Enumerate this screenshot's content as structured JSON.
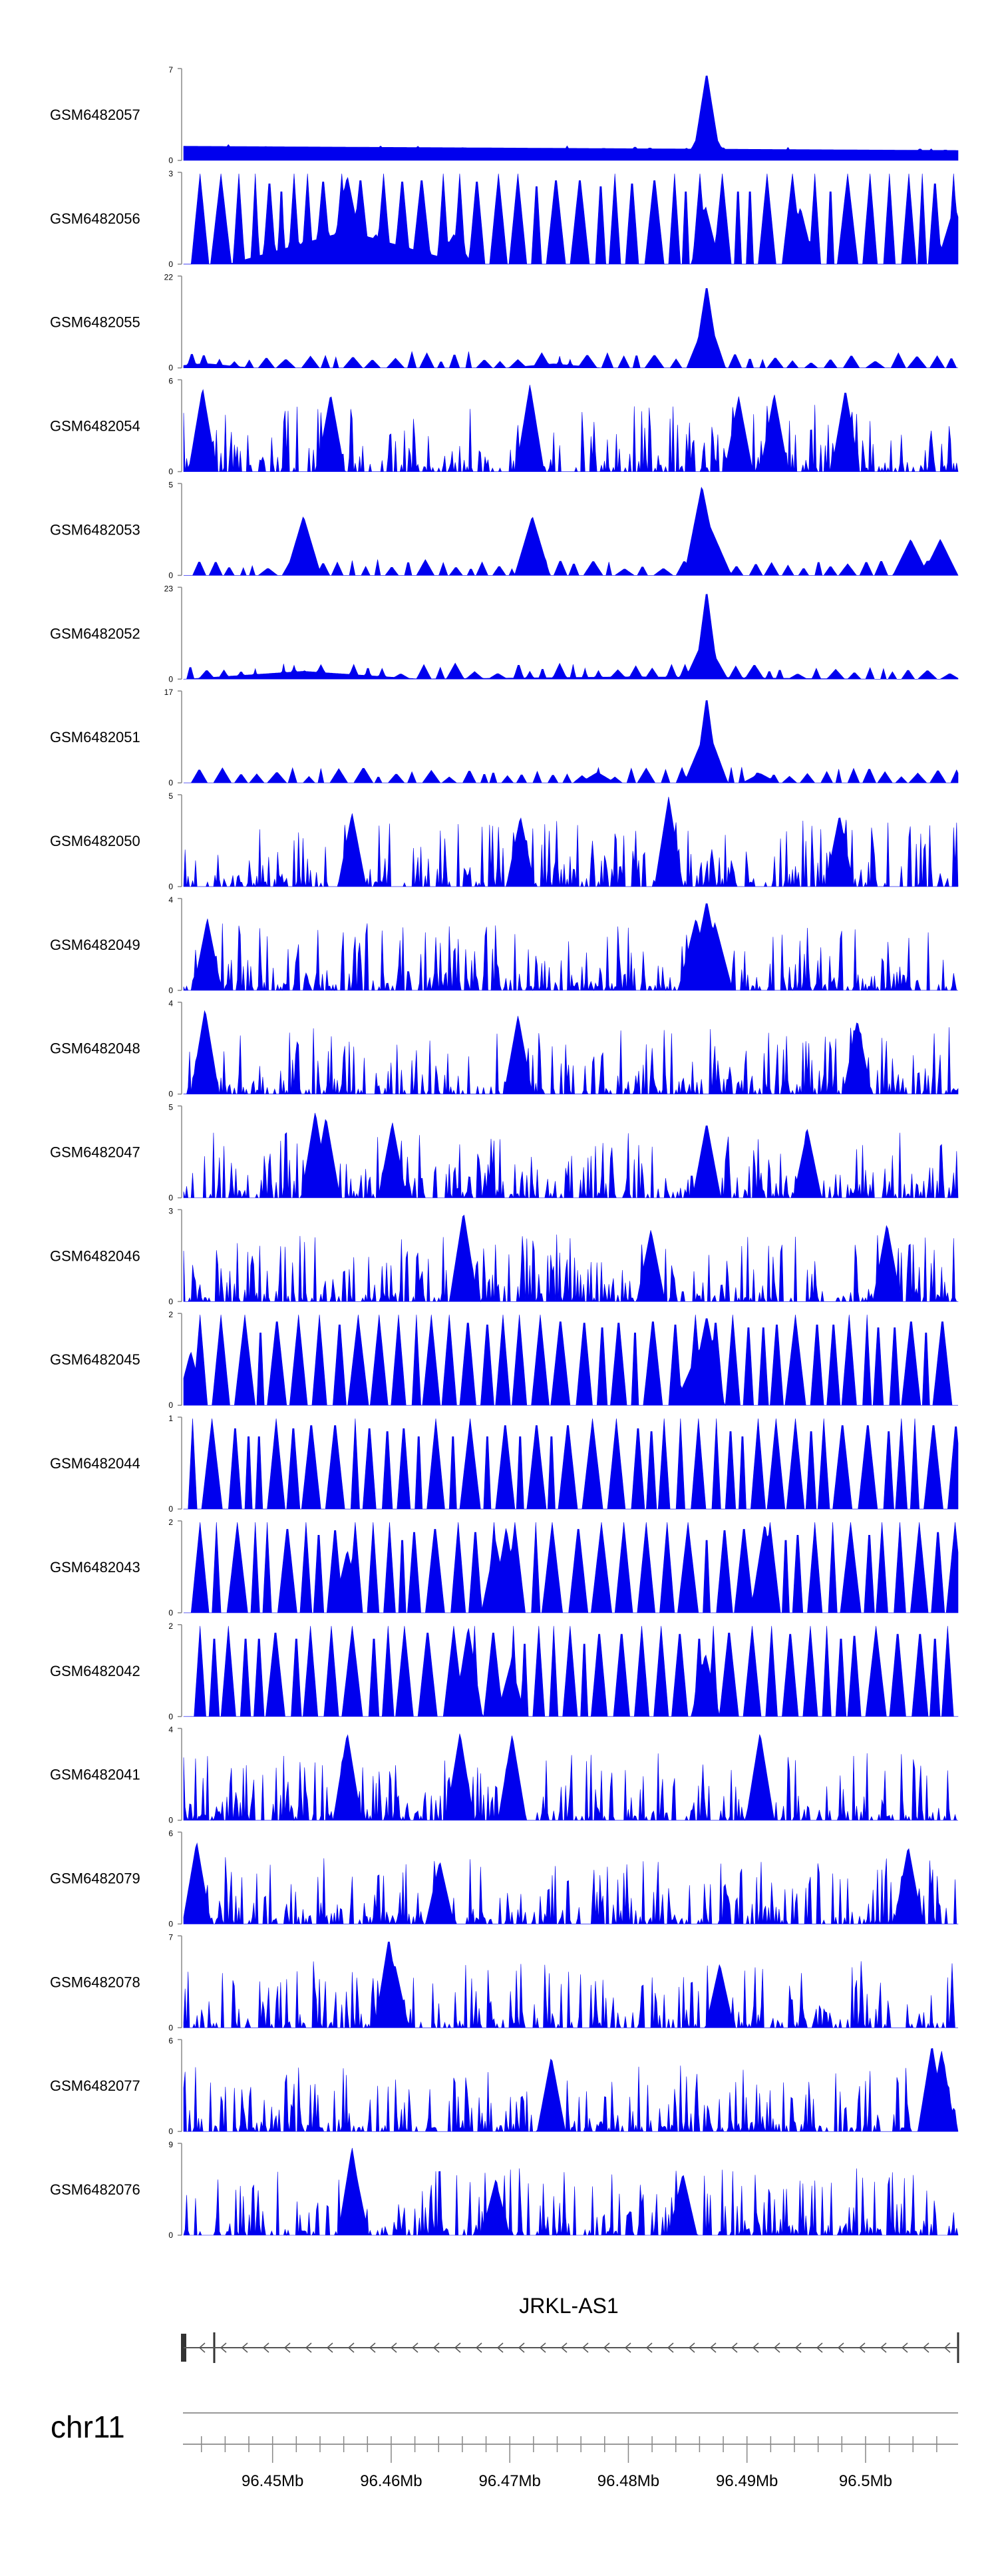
{
  "chart_data": {
    "type": "area",
    "genome": {
      "chromosome": "chr11",
      "gene": "JRKL-AS1",
      "region_mb": [
        96.4425,
        96.5078
      ],
      "ticks_mb": [
        96.45,
        96.46,
        96.47,
        96.48,
        96.49,
        96.5
      ],
      "tick_labels": [
        "96.45Mb",
        "96.46Mb",
        "96.47Mb",
        "96.48Mb",
        "96.49Mb",
        "96.5Mb"
      ],
      "gene_span_mb": [
        96.4425,
        96.5078
      ],
      "gene_strand": "-"
    },
    "fill_color": "#0000ee",
    "tracks": [
      {
        "name": "GSM6482057",
        "ymax": 7,
        "style": "sparse",
        "peaks": [
          [
            96.4425,
            0.22,
            1.1
          ],
          [
            96.4433,
            0.06,
            0.35
          ],
          [
            96.4866,
            0.0012,
            6.9
          ],
          [
            96.4866,
            0.0018,
            3.2
          ],
          [
            96.4857,
            0.002,
            1.0
          ],
          [
            96.4873,
            0.002,
            0.9
          ],
          [
            96.4879,
            0.0015,
            0.8
          ],
          [
            96.5037,
            0.0012,
            0.7
          ],
          [
            96.4995,
            0.0012,
            0.8
          ]
        ]
      },
      {
        "name": "GSM6482056",
        "ymax": 3,
        "style": "sparse",
        "peaks": [
          [
            96.4563,
            0.0015,
            2.95
          ],
          [
            96.4563,
            0.01,
            1.1
          ],
          [
            96.4865,
            0.0012,
            1.95
          ],
          [
            96.4945,
            0.0012,
            1.9
          ],
          [
            96.5075,
            0.0015,
            1.95
          ],
          [
            96.4587,
            0.0015,
            1.0
          ],
          [
            96.4653,
            0.0015,
            1.0
          ]
        ]
      },
      {
        "name": "GSM6482055",
        "ymax": 22,
        "style": "sparse",
        "peaks": [
          [
            96.4866,
            0.0011,
            20.5
          ],
          [
            96.4863,
            0.0014,
            10.0
          ],
          [
            96.4868,
            0.0014,
            12.0
          ],
          [
            96.4443,
            0.004,
            1.1
          ],
          [
            96.4737,
            0.004,
            1.0
          ]
        ]
      },
      {
        "name": "GSM6482054",
        "ymax": 6,
        "style": "dense",
        "peaks": [
          [
            96.4441,
            0.0012,
            5.6
          ],
          [
            96.4549,
            0.0012,
            5.2
          ],
          [
            96.4717,
            0.0012,
            5.8
          ],
          [
            96.4923,
            0.0012,
            5.2
          ],
          [
            96.4983,
            0.0012,
            5.5
          ],
          [
            96.4893,
            0.0012,
            5.0
          ]
        ]
      },
      {
        "name": "GSM6482053",
        "ymax": 5,
        "style": "sparse",
        "peaks": [
          [
            96.4862,
            0.0015,
            5.0
          ],
          [
            96.4867,
            0.002,
            3.0
          ],
          [
            96.4526,
            0.0015,
            3.3
          ],
          [
            96.4719,
            0.0015,
            3.3
          ],
          [
            96.5038,
            0.0015,
            2.0
          ],
          [
            96.5063,
            0.0015,
            2.0
          ]
        ]
      },
      {
        "name": "GSM6482052",
        "ymax": 23,
        "style": "sparse",
        "peaks": [
          [
            96.4866,
            0.001,
            23.0
          ],
          [
            96.4863,
            0.0015,
            10.0
          ],
          [
            96.4869,
            0.0015,
            8.0
          ],
          [
            96.4526,
            0.01,
            2.0
          ],
          [
            96.4808,
            0.02,
            0.6
          ]
        ]
      },
      {
        "name": "GSM6482051",
        "ymax": 17,
        "style": "sparse",
        "peaks": [
          [
            96.4866,
            0.001,
            16.5
          ],
          [
            96.4862,
            0.0015,
            8.0
          ],
          [
            96.4869,
            0.0015,
            9.0
          ],
          [
            96.4774,
            0.0015,
            2.0
          ],
          [
            96.4911,
            0.0015,
            1.8
          ]
        ]
      },
      {
        "name": "GSM6482050",
        "ymax": 5,
        "style": "dense",
        "peaks": [
          [
            96.4834,
            0.0012,
            5.0
          ],
          [
            96.4567,
            0.0012,
            4.1
          ],
          [
            96.4709,
            0.0012,
            3.9
          ],
          [
            96.4978,
            0.0012,
            4.0
          ]
        ]
      },
      {
        "name": "GSM6482049",
        "ymax": 4,
        "style": "dense",
        "peaks": [
          [
            96.4866,
            0.0015,
            4.0
          ],
          [
            96.4857,
            0.0015,
            3.2
          ],
          [
            96.4873,
            0.0015,
            3.0
          ],
          [
            96.4445,
            0.0012,
            3.2
          ]
        ]
      },
      {
        "name": "GSM6482048",
        "ymax": 4,
        "style": "dense",
        "peaks": [
          [
            96.4443,
            0.0012,
            3.8
          ],
          [
            96.4707,
            0.0012,
            3.5
          ],
          [
            96.4993,
            0.0012,
            3.3
          ]
        ]
      },
      {
        "name": "GSM6482047",
        "ymax": 5,
        "style": "dense",
        "peaks": [
          [
            96.4536,
            0.0012,
            4.8
          ],
          [
            96.4545,
            0.0012,
            4.5
          ],
          [
            96.4601,
            0.0012,
            4.2
          ],
          [
            96.4866,
            0.0012,
            4.2
          ],
          [
            96.4951,
            0.0012,
            3.8
          ]
        ]
      },
      {
        "name": "GSM6482046",
        "ymax": 3,
        "style": "dense",
        "peaks": [
          [
            96.4661,
            0.0012,
            3.0
          ],
          [
            96.5018,
            0.0012,
            2.6
          ],
          [
            96.4819,
            0.0012,
            2.4
          ]
        ]
      },
      {
        "name": "GSM6482045",
        "ymax": 2,
        "style": "sparse",
        "peaks": [
          [
            96.4866,
            0.0015,
            2.0
          ],
          [
            96.4859,
            0.002,
            1.2
          ],
          [
            96.4431,
            0.0012,
            1.2
          ]
        ]
      },
      {
        "name": "GSM6482044",
        "ymax": 1,
        "style": "sparse",
        "peaks": []
      },
      {
        "name": "GSM6482043",
        "ymax": 2,
        "style": "sparse",
        "peaks": [
          [
            96.4915,
            0.0012,
            2.0
          ],
          [
            96.4697,
            0.0012,
            1.9
          ],
          [
            96.4688,
            0.0012,
            1.6
          ],
          [
            96.4563,
            0.0012,
            1.4
          ]
        ]
      },
      {
        "name": "GSM6482042",
        "ymax": 2,
        "style": "sparse",
        "peaks": [
          [
            96.4665,
            0.0012,
            2.0
          ],
          [
            96.4865,
            0.0012,
            1.4
          ],
          [
            96.4701,
            0.0012,
            1.2
          ]
        ]
      },
      {
        "name": "GSM6482041",
        "ymax": 4,
        "style": "dense",
        "peaks": [
          [
            96.4563,
            0.0012,
            3.9
          ],
          [
            96.4658,
            0.0012,
            3.9
          ],
          [
            96.4911,
            0.0012,
            3.9
          ],
          [
            96.4702,
            0.0012,
            3.8
          ]
        ]
      },
      {
        "name": "GSM6482079",
        "ymax": 6,
        "style": "dense",
        "peaks": [
          [
            96.4436,
            0.0012,
            5.5
          ],
          [
            96.5036,
            0.0012,
            5.2
          ],
          [
            96.4641,
            0.0012,
            4.2
          ]
        ]
      },
      {
        "name": "GSM6482078",
        "ymax": 7,
        "style": "dense",
        "peaks": [
          [
            96.4598,
            0.0012,
            7.0
          ],
          [
            96.4603,
            0.0012,
            5.0
          ],
          [
            96.4877,
            0.0012,
            5.0
          ]
        ]
      },
      {
        "name": "GSM6482077",
        "ymax": 6,
        "style": "dense",
        "peaks": [
          [
            96.5056,
            0.0012,
            5.8
          ],
          [
            96.5064,
            0.0012,
            5.4
          ],
          [
            96.4735,
            0.0012,
            5.0
          ]
        ]
      },
      {
        "name": "GSM6482076",
        "ymax": 9,
        "style": "dense",
        "peaks": [
          [
            96.4567,
            0.0012,
            8.8
          ],
          [
            96.4569,
            0.0012,
            7.0
          ],
          [
            96.4846,
            0.0012,
            6.2
          ],
          [
            96.4688,
            0.0012,
            5.5
          ]
        ]
      }
    ]
  }
}
